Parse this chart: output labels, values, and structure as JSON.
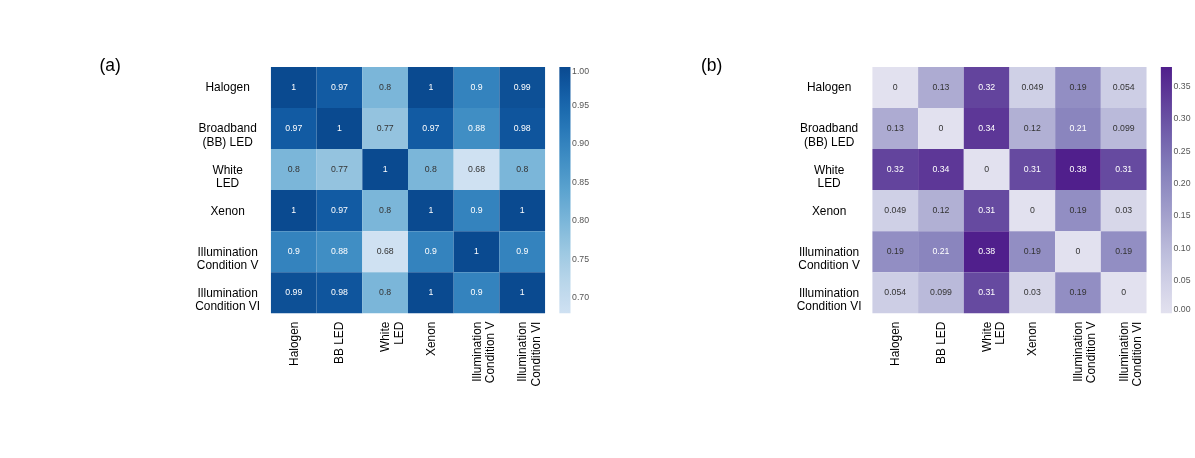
{
  "chart_data": [
    {
      "type": "heatmap",
      "title": "(a)",
      "categories": [
        "Halogen",
        "BB LED",
        "White\nLED",
        "Xenon",
        "Illumination\nCondition V",
        "Illumination\nCondition VI"
      ],
      "y_categories": [
        "Halogen",
        "Broadband\n(BB) LED",
        "White\nLED",
        "Xenon",
        "Illumination\nCondition V",
        "Illumination\nCondition VI"
      ],
      "cells": [
        [
          1,
          0.97,
          0.8,
          1,
          0.9,
          0.99
        ],
        [
          0.97,
          1,
          0.77,
          0.97,
          0.88,
          0.98
        ],
        [
          0.8,
          0.77,
          1,
          0.8,
          0.68,
          0.8
        ],
        [
          1,
          0.97,
          0.8,
          1,
          0.9,
          1
        ],
        [
          0.9,
          0.88,
          0.68,
          0.9,
          1,
          0.9
        ],
        [
          0.99,
          0.98,
          0.8,
          1,
          0.9,
          1
        ]
      ],
      "clim": [
        0.68,
        1.0
      ],
      "cticks": [
        {
          "value": 0.7,
          "label": "0.70"
        },
        0.75,
        {
          "value": 0.8,
          "label": "0.80"
        },
        0.85,
        {
          "value": 0.9,
          "label": "0.90"
        },
        0.95,
        {
          "value": 1,
          "label": "1.00"
        }
      ],
      "data_labels": true
    },
    {
      "type": "heatmap",
      "title": "(b)",
      "categories": [
        "Halogen",
        "BB LED",
        "White\nLED",
        "Xenon",
        "Illumination\nCondition V",
        "Illumination\nCondition VI"
      ],
      "y_categories": [
        "Halogen",
        "Broadband\n(BB) LED",
        "White\nLED",
        "Xenon",
        "Illumination\nCondition V",
        "Illumination\nCondition VI"
      ],
      "cells": [
        [
          0,
          0.13,
          0.32,
          0.049,
          0.19,
          0.054
        ],
        [
          0.13,
          0,
          0.34,
          0.12,
          0.21,
          0.099
        ],
        [
          0.32,
          0.34,
          0,
          0.31,
          0.38,
          0.31
        ],
        [
          0.049,
          0.12,
          0.31,
          0,
          0.19,
          0.03
        ],
        [
          0.19,
          0.21,
          0.38,
          0.19,
          0,
          0.19
        ],
        [
          0.054,
          0.099,
          0.31,
          0.03,
          0.19,
          0
        ]
      ],
      "clim": [
        0,
        0.38
      ],
      "cticks": [
        {
          "value": 0,
          "label": "0.00"
        },
        0.05,
        {
          "value": 0.1,
          "label": "0.10"
        },
        0.15,
        {
          "value": 0.2,
          "label": "0.20"
        },
        0.25,
        {
          "value": 0.3,
          "label": "0.30"
        },
        0.35
      ],
      "data_labels": true
    }
  ]
}
